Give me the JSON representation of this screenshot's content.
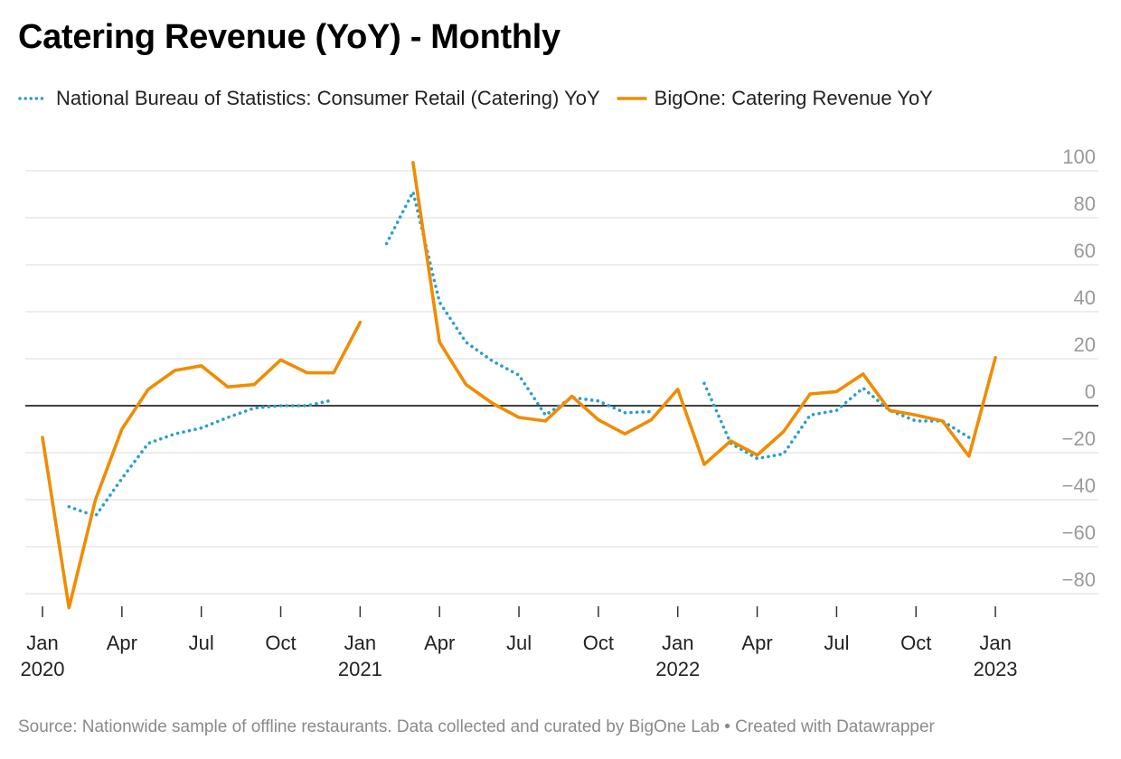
{
  "title": "Catering Revenue (YoY) - Monthly",
  "source": "Source: Nationwide sample of offline restaurants. Data collected and curated by BigOne Lab • Created with Datawrapper",
  "colors": {
    "nbs": "#2a9fd0",
    "bigone": "#f08c00",
    "grid": "#e2e2e2",
    "zero": "#000000"
  },
  "chart_data": {
    "type": "line",
    "title": "Catering Revenue (YoY) - Monthly",
    "x_start": "2020-01",
    "x_count": 37,
    "ylim": [
      -90,
      105
    ],
    "y_ticks": [
      100,
      80,
      60,
      40,
      20,
      0,
      -20,
      -40,
      -60,
      -80
    ],
    "y_tick_labels": [
      "100",
      "80",
      "60",
      "40",
      "20",
      "0",
      "−20",
      "−40",
      "−60",
      "−80"
    ],
    "x_ticks": [
      {
        "month_index": 0,
        "label": "Jan",
        "year": "2020"
      },
      {
        "month_index": 3,
        "label": "Apr",
        "year": ""
      },
      {
        "month_index": 6,
        "label": "Jul",
        "year": ""
      },
      {
        "month_index": 9,
        "label": "Oct",
        "year": ""
      },
      {
        "month_index": 12,
        "label": "Jan",
        "year": "2021"
      },
      {
        "month_index": 15,
        "label": "Apr",
        "year": ""
      },
      {
        "month_index": 18,
        "label": "Jul",
        "year": ""
      },
      {
        "month_index": 21,
        "label": "Oct",
        "year": ""
      },
      {
        "month_index": 24,
        "label": "Jan",
        "year": "2022"
      },
      {
        "month_index": 27,
        "label": "Apr",
        "year": ""
      },
      {
        "month_index": 30,
        "label": "Jul",
        "year": ""
      },
      {
        "month_index": 33,
        "label": "Oct",
        "year": ""
      },
      {
        "month_index": 36,
        "label": "Jan",
        "year": "2023"
      }
    ],
    "legend_position": "top-left",
    "series": [
      {
        "name": "National Bureau of Statistics: Consumer Retail (Catering) YoY",
        "key": "nbs",
        "style": "dotted",
        "values": [
          null,
          -43,
          -47,
          -31,
          -16,
          -12,
          -9.5,
          -5,
          -1,
          0,
          0,
          2.5,
          null,
          69,
          91,
          44,
          27,
          19,
          13,
          -4,
          3.5,
          2,
          -3,
          -2.5,
          null,
          9.5,
          -16,
          -22.5,
          -20.5,
          -4,
          -2,
          7.5,
          -2,
          -6.5,
          -6.5,
          -13.5,
          null
        ]
      },
      {
        "name": "BigOne: Catering Revenue YoY",
        "key": "bigone",
        "style": "solid",
        "values": [
          -13.5,
          -86,
          -40,
          -10,
          7,
          15,
          17,
          8,
          9,
          19.5,
          14,
          14,
          35.5,
          null,
          103.5,
          27,
          9,
          1,
          -5,
          -6.5,
          4,
          -6,
          -12,
          -6,
          7,
          -25,
          -15,
          -21,
          -11,
          5,
          6,
          13.5,
          -2,
          -4,
          -6.5,
          -21.5,
          20.5
        ]
      }
    ]
  }
}
